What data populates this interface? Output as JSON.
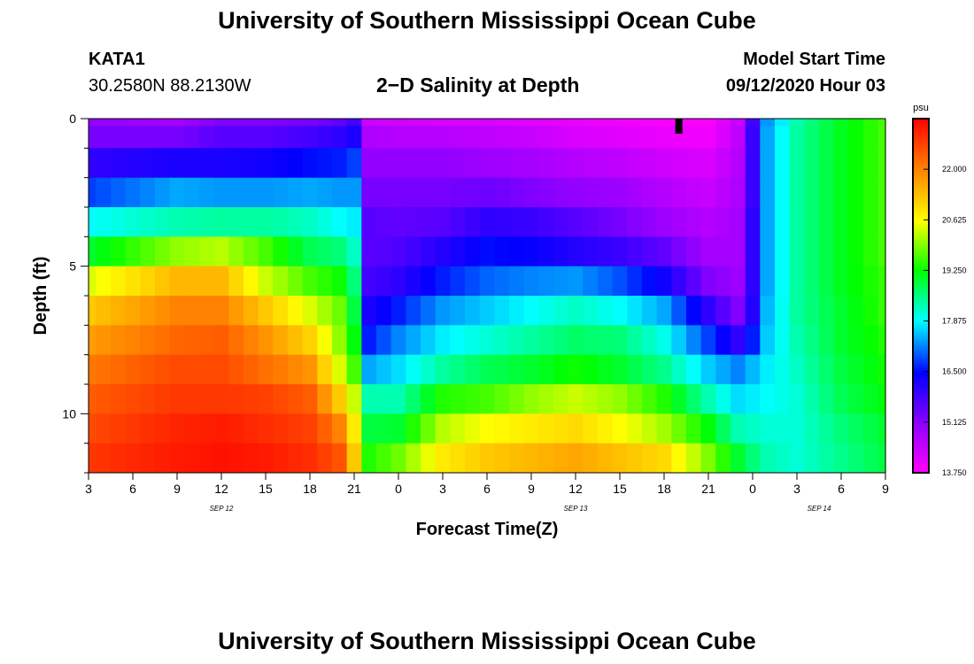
{
  "header": {
    "title": "University of Southern Mississippi Ocean Cube",
    "footer_title": "University of Southern Mississippi Ocean Cube",
    "station": "KATA1",
    "coords": "30.2580N 88.2130W",
    "plot_title": "2−D Salinity at Depth",
    "model_start_label": "Model Start Time",
    "model_start_value": "09/12/2020 Hour 03"
  },
  "chart_data": {
    "type": "heatmap",
    "title": "2−D Salinity at Depth",
    "xlabel": "Forecast Time(Z)",
    "ylabel": "Depth (ft)",
    "x_tick_labels": [
      "3",
      "6",
      "9",
      "12",
      "15",
      "18",
      "21",
      "0",
      "3",
      "6",
      "9",
      "12",
      "15",
      "18",
      "21",
      "0",
      "3",
      "6",
      "9"
    ],
    "date_labels": [
      {
        "text": "SEP 12",
        "at_tick": 3
      },
      {
        "text": "SEP 13",
        "at_tick": 11
      },
      {
        "text": "SEP 14",
        "at_tick": 16.5
      }
    ],
    "xlim_hours": [
      3,
      57
    ],
    "x_step_hours": 1,
    "y_ticks": [
      0,
      5,
      10
    ],
    "ylim_ft": [
      0,
      12
    ],
    "depth_levels_ft": [
      0,
      0.5,
      1.5,
      2.5,
      3.5,
      4.5,
      5.5,
      6.5,
      7.5,
      8.5,
      9.5,
      10.5,
      11.5
    ],
    "colorbar": {
      "unit": "psu",
      "min": 13.75,
      "max": 23.375,
      "tick_labels": [
        "22.000",
        "20.625",
        "19.250",
        "17.875",
        "16.500",
        "15.125",
        "13.750"
      ],
      "tick_values": [
        22.0,
        20.625,
        19.25,
        17.875,
        16.5,
        15.125,
        13.75
      ]
    },
    "current_time_marker_hour": 43,
    "profile_keypoints_hours": [
      3,
      9,
      12,
      15,
      18,
      20,
      21,
      22,
      24,
      27,
      30,
      33,
      36,
      39,
      42,
      45,
      47,
      48,
      49,
      51,
      54,
      57
    ],
    "salinity_profiles": [
      [
        15.0,
        15.3,
        16.0,
        16.8,
        17.9,
        19.0,
        20.4,
        21.2,
        21.7,
        22.1,
        22.4,
        22.6,
        22.8
      ],
      [
        14.8,
        15.3,
        16.2,
        17.4,
        18.3,
        20.0,
        21.4,
        22.0,
        22.3,
        22.6,
        22.8,
        23.0,
        23.1
      ],
      [
        15.2,
        15.6,
        16.2,
        17.3,
        18.4,
        20.2,
        21.4,
        22.0,
        22.4,
        22.6,
        22.8,
        23.1,
        23.2
      ],
      [
        15.2,
        15.6,
        16.3,
        17.3,
        18.4,
        19.6,
        20.3,
        21.2,
        21.8,
        22.2,
        22.7,
        22.9,
        23.1
      ],
      [
        15.3,
        15.8,
        16.5,
        17.4,
        18.2,
        18.8,
        19.6,
        20.4,
        21.1,
        21.8,
        22.4,
        22.7,
        22.9
      ],
      [
        15.5,
        16.0,
        16.6,
        17.3,
        17.9,
        18.6,
        19.3,
        19.8,
        20.0,
        20.4,
        21.2,
        22.0,
        22.5
      ],
      [
        15.8,
        16.2,
        16.8,
        17.3,
        17.8,
        18.2,
        18.6,
        18.9,
        19.2,
        19.6,
        20.3,
        20.8,
        21.2
      ],
      [
        14.4,
        14.7,
        15.0,
        15.3,
        15.6,
        15.6,
        15.8,
        16.2,
        16.6,
        17.4,
        18.3,
        18.9,
        19.4
      ],
      [
        14.3,
        14.6,
        15.0,
        15.3,
        15.5,
        15.7,
        16.0,
        16.6,
        17.2,
        17.7,
        18.3,
        19.0,
        19.8
      ],
      [
        14.2,
        14.6,
        15.0,
        15.3,
        15.6,
        16.1,
        16.6,
        17.3,
        17.8,
        18.4,
        19.4,
        20.2,
        20.8
      ],
      [
        14.2,
        14.5,
        14.9,
        15.4,
        16.0,
        16.5,
        17.0,
        17.6,
        18.1,
        18.8,
        19.6,
        20.6,
        21.2
      ],
      [
        14.1,
        14.4,
        14.8,
        15.2,
        15.9,
        16.4,
        17.2,
        17.9,
        18.4,
        19.0,
        20.0,
        20.8,
        21.4
      ],
      [
        14.0,
        14.2,
        14.6,
        15.0,
        15.6,
        16.1,
        17.3,
        18.2,
        18.7,
        19.3,
        20.3,
        21.0,
        21.6
      ],
      [
        13.9,
        14.1,
        14.5,
        14.9,
        15.3,
        15.9,
        16.9,
        17.9,
        18.6,
        19.0,
        20.0,
        20.6,
        21.3
      ],
      [
        13.8,
        14.0,
        14.3,
        14.6,
        14.9,
        15.5,
        16.3,
        17.4,
        18.0,
        18.5,
        19.4,
        20.1,
        21.0
      ],
      [
        13.8,
        13.9,
        14.2,
        14.4,
        14.6,
        14.8,
        15.2,
        16.0,
        16.8,
        17.6,
        18.3,
        19.2,
        19.9
      ],
      [
        14.4,
        14.5,
        14.6,
        14.7,
        14.8,
        14.8,
        14.9,
        15.2,
        16.0,
        17.2,
        17.7,
        18.3,
        19.0
      ],
      [
        15.8,
        15.9,
        15.9,
        15.9,
        16.0,
        16.0,
        16.0,
        16.1,
        16.6,
        17.5,
        17.8,
        18.2,
        18.6
      ],
      [
        17.3,
        17.4,
        17.4,
        17.4,
        17.4,
        17.4,
        17.4,
        17.5,
        17.6,
        17.8,
        17.9,
        18.1,
        18.3
      ],
      [
        18.3,
        18.4,
        18.4,
        18.4,
        18.4,
        18.4,
        18.4,
        18.4,
        18.3,
        18.2,
        18.1,
        18.1,
        18.1
      ],
      [
        19.1,
        19.1,
        19.1,
        19.1,
        19.1,
        19.1,
        19.1,
        19.0,
        19.0,
        18.9,
        18.8,
        18.6,
        18.5
      ],
      [
        19.6,
        19.6,
        19.6,
        19.6,
        19.6,
        19.6,
        19.5,
        19.5,
        19.4,
        19.3,
        19.2,
        19.0,
        18.9
      ]
    ]
  }
}
